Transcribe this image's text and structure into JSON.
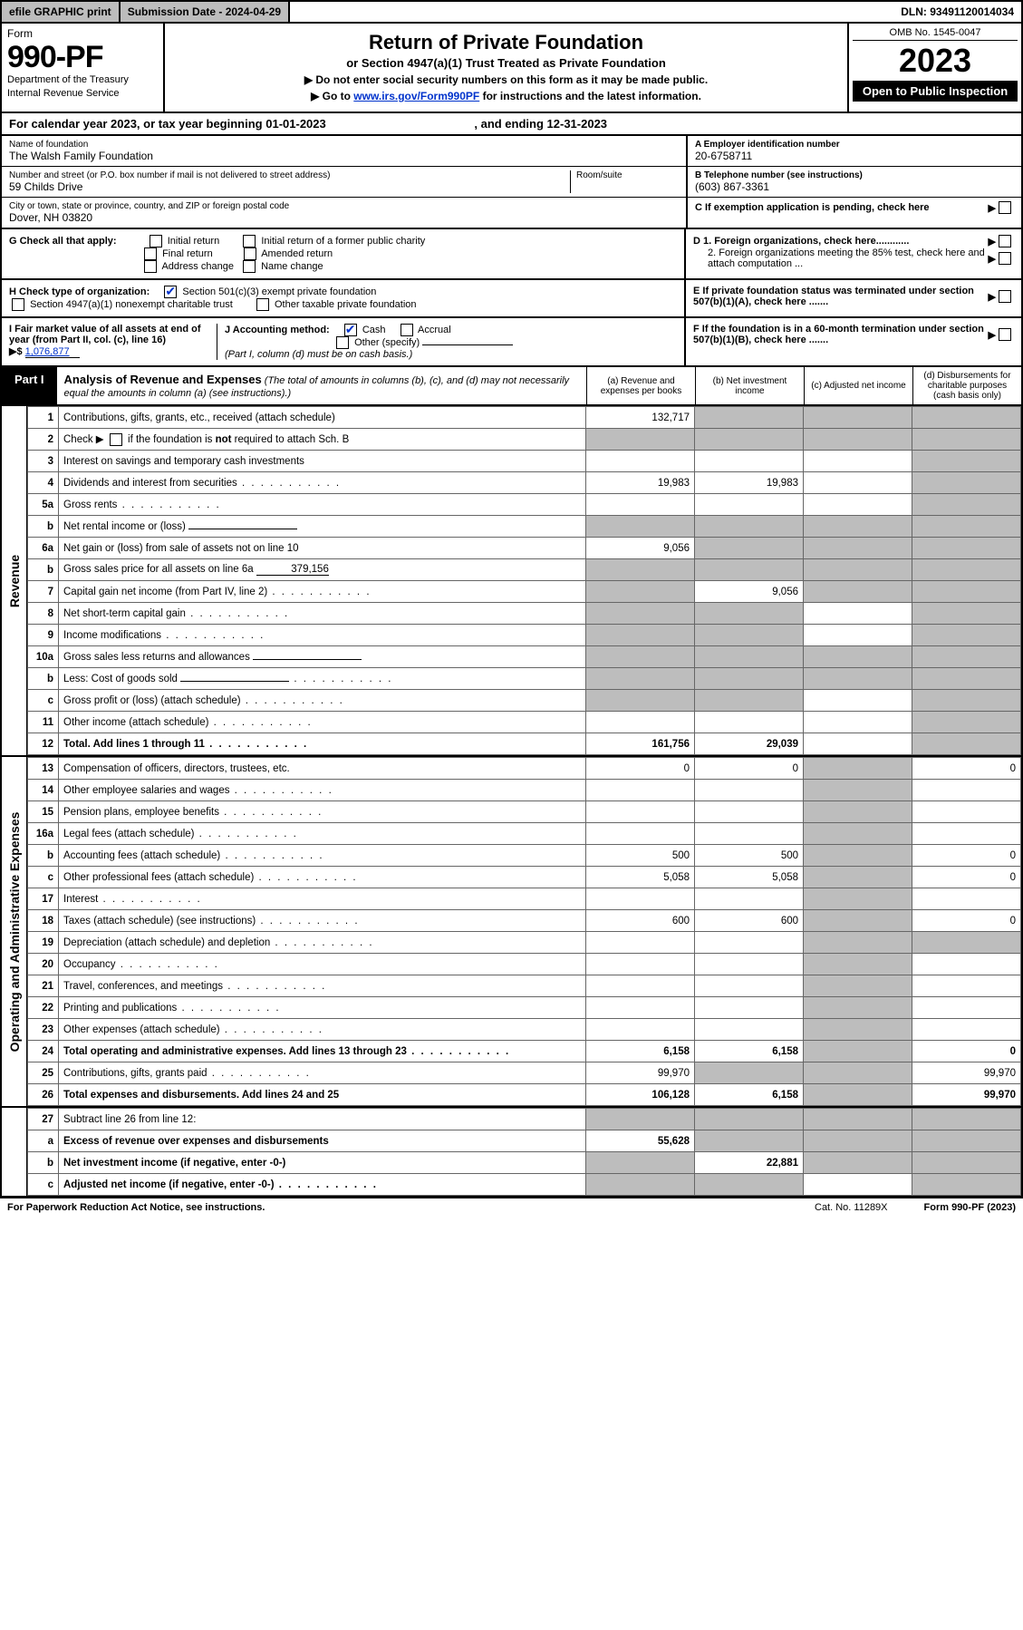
{
  "topbar": {
    "efile": "efile GRAPHIC print",
    "submission": "Submission Date - 2024-04-29",
    "dln": "DLN: 93491120014034"
  },
  "header": {
    "form_label": "Form",
    "form_number": "990-PF",
    "dept1": "Department of the Treasury",
    "dept2": "Internal Revenue Service",
    "title": "Return of Private Foundation",
    "subtitle": "or Section 4947(a)(1) Trust Treated as Private Foundation",
    "instr1": "▶ Do not enter social security numbers on this form as it may be made public.",
    "instr2_pre": "▶ Go to ",
    "instr2_link": "www.irs.gov/Form990PF",
    "instr2_post": " for instructions and the latest information.",
    "omb": "OMB No. 1545-0047",
    "year": "2023",
    "open": "Open to Public Inspection"
  },
  "yearline": {
    "text_pre": "For calendar year 2023, or tax year beginning ",
    "begin": "01-01-2023",
    "text_mid": " , and ending ",
    "end": "12-31-2023"
  },
  "info": {
    "name_lbl": "Name of foundation",
    "name_val": "The Walsh Family Foundation",
    "addr_lbl": "Number and street (or P.O. box number if mail is not delivered to street address)",
    "addr_val": "59 Childs Drive",
    "room_lbl": "Room/suite",
    "city_lbl": "City or town, state or province, country, and ZIP or foreign postal code",
    "city_val": "Dover, NH  03820",
    "A_lbl": "A Employer identification number",
    "A_val": "20-6758711",
    "B_lbl": "B Telephone number (see instructions)",
    "B_val": "(603) 867-3361",
    "C_lbl": "C If exemption application is pending, check here",
    "D1_lbl": "D 1. Foreign organizations, check here............",
    "D2_lbl": "2. Foreign organizations meeting the 85% test, check here and attach computation ...",
    "E_lbl": "E  If private foundation status was terminated under section 507(b)(1)(A), check here .......",
    "F_lbl": "F  If the foundation is in a 60-month termination under section 507(b)(1)(B), check here ......."
  },
  "G": {
    "label": "G Check all that apply:",
    "opts": [
      "Initial return",
      "Initial return of a former public charity",
      "Final return",
      "Amended return",
      "Address change",
      "Name change"
    ]
  },
  "H": {
    "label": "H Check type of organization:",
    "opt1": "Section 501(c)(3) exempt private foundation",
    "opt2": "Section 4947(a)(1) nonexempt charitable trust",
    "opt3": "Other taxable private foundation"
  },
  "I": {
    "label": "I Fair market value of all assets at end of year (from Part II, col. (c), line 16)",
    "arrow": "▶$",
    "val": "1,076,877"
  },
  "J": {
    "label": "J Accounting method:",
    "cash": "Cash",
    "accrual": "Accrual",
    "other": "Other (specify)",
    "note": "(Part I, column (d) must be on cash basis.)"
  },
  "part1": {
    "label": "Part I",
    "title": "Analysis of Revenue and Expenses",
    "note": " (The total of amounts in columns (b), (c), and (d) may not necessarily equal the amounts in column (a) (see instructions).)",
    "col_a": "(a)  Revenue and expenses per books",
    "col_b": "(b)  Net investment income",
    "col_c": "(c)  Adjusted net income",
    "col_d": "(d)  Disbursements for charitable purposes (cash basis only)"
  },
  "sections": {
    "revenue": "Revenue",
    "opex": "Operating and Administrative Expenses"
  },
  "rows": [
    {
      "n": "1",
      "d": "Contributions, gifts, grants, etc., received (attach schedule)",
      "a": "132,717",
      "b": "grey",
      "c": "grey",
      "e": "grey"
    },
    {
      "n": "2",
      "d": "Check ▶ ☐ if the foundation is not required to attach Sch. B",
      "a": "grey",
      "b": "grey",
      "c": "grey",
      "e": "grey",
      "desc_html": true
    },
    {
      "n": "3",
      "d": "Interest on savings and temporary cash investments",
      "a": "",
      "b": "",
      "c": "",
      "e": "grey"
    },
    {
      "n": "4",
      "d": "Dividends and interest from securities",
      "a": "19,983",
      "b": "19,983",
      "c": "",
      "e": "grey",
      "dots": true
    },
    {
      "n": "5a",
      "d": "Gross rents",
      "a": "",
      "b": "",
      "c": "",
      "e": "grey",
      "dots": true
    },
    {
      "n": "b",
      "d": "Net rental income or (loss)",
      "a": "grey",
      "b": "grey",
      "c": "grey",
      "e": "grey",
      "inline_blank": true
    },
    {
      "n": "6a",
      "d": "Net gain or (loss) from sale of assets not on line 10",
      "a": "9,056",
      "b": "grey",
      "c": "grey",
      "e": "grey"
    },
    {
      "n": "b",
      "d": "Gross sales price for all assets on line 6a",
      "a": "grey",
      "b": "grey",
      "c": "grey",
      "e": "grey",
      "inline_val": "379,156"
    },
    {
      "n": "7",
      "d": "Capital gain net income (from Part IV, line 2)",
      "a": "grey",
      "b": "9,056",
      "c": "grey",
      "e": "grey",
      "dots": true
    },
    {
      "n": "8",
      "d": "Net short-term capital gain",
      "a": "grey",
      "b": "grey",
      "c": "",
      "e": "grey",
      "dots": true
    },
    {
      "n": "9",
      "d": "Income modifications",
      "a": "grey",
      "b": "grey",
      "c": "",
      "e": "grey",
      "dots": true
    },
    {
      "n": "10a",
      "d": "Gross sales less returns and allowances",
      "a": "grey",
      "b": "grey",
      "c": "grey",
      "e": "grey",
      "inline_blank": true
    },
    {
      "n": "b",
      "d": "Less: Cost of goods sold",
      "a": "grey",
      "b": "grey",
      "c": "grey",
      "e": "grey",
      "inline_blank": true,
      "dots": true
    },
    {
      "n": "c",
      "d": "Gross profit or (loss) (attach schedule)",
      "a": "grey",
      "b": "grey",
      "c": "",
      "e": "grey",
      "dots": true
    },
    {
      "n": "11",
      "d": "Other income (attach schedule)",
      "a": "",
      "b": "",
      "c": "",
      "e": "grey",
      "dots": true
    },
    {
      "n": "12",
      "d": "Total. Add lines 1 through 11",
      "a": "161,756",
      "b": "29,039",
      "c": "",
      "e": "grey",
      "bold": true,
      "dots": true
    }
  ],
  "rows_opex": [
    {
      "n": "13",
      "d": "Compensation of officers, directors, trustees, etc.",
      "a": "0",
      "b": "0",
      "c": "grey",
      "e": "0"
    },
    {
      "n": "14",
      "d": "Other employee salaries and wages",
      "a": "",
      "b": "",
      "c": "grey",
      "e": "",
      "dots": true
    },
    {
      "n": "15",
      "d": "Pension plans, employee benefits",
      "a": "",
      "b": "",
      "c": "grey",
      "e": "",
      "dots": true
    },
    {
      "n": "16a",
      "d": "Legal fees (attach schedule)",
      "a": "",
      "b": "",
      "c": "grey",
      "e": "",
      "dots": true
    },
    {
      "n": "b",
      "d": "Accounting fees (attach schedule)",
      "a": "500",
      "b": "500",
      "c": "grey",
      "e": "0",
      "dots": true
    },
    {
      "n": "c",
      "d": "Other professional fees (attach schedule)",
      "a": "5,058",
      "b": "5,058",
      "c": "grey",
      "e": "0",
      "dots": true
    },
    {
      "n": "17",
      "d": "Interest",
      "a": "",
      "b": "",
      "c": "grey",
      "e": "",
      "dots": true
    },
    {
      "n": "18",
      "d": "Taxes (attach schedule) (see instructions)",
      "a": "600",
      "b": "600",
      "c": "grey",
      "e": "0",
      "dots": true
    },
    {
      "n": "19",
      "d": "Depreciation (attach schedule) and depletion",
      "a": "",
      "b": "",
      "c": "grey",
      "e": "grey",
      "dots": true
    },
    {
      "n": "20",
      "d": "Occupancy",
      "a": "",
      "b": "",
      "c": "grey",
      "e": "",
      "dots": true
    },
    {
      "n": "21",
      "d": "Travel, conferences, and meetings",
      "a": "",
      "b": "",
      "c": "grey",
      "e": "",
      "dots": true
    },
    {
      "n": "22",
      "d": "Printing and publications",
      "a": "",
      "b": "",
      "c": "grey",
      "e": "",
      "dots": true
    },
    {
      "n": "23",
      "d": "Other expenses (attach schedule)",
      "a": "",
      "b": "",
      "c": "grey",
      "e": "",
      "dots": true
    },
    {
      "n": "24",
      "d": "Total operating and administrative expenses. Add lines 13 through 23",
      "a": "6,158",
      "b": "6,158",
      "c": "grey",
      "e": "0",
      "bold": true,
      "dots": true
    },
    {
      "n": "25",
      "d": "Contributions, gifts, grants paid",
      "a": "99,970",
      "b": "grey",
      "c": "grey",
      "e": "99,970",
      "dots": true
    },
    {
      "n": "26",
      "d": "Total expenses and disbursements. Add lines 24 and 25",
      "a": "106,128",
      "b": "6,158",
      "c": "grey",
      "e": "99,970",
      "bold": true
    }
  ],
  "rows_bottom": [
    {
      "n": "27",
      "d": "Subtract line 26 from line 12:",
      "a": "grey",
      "b": "grey",
      "c": "grey",
      "e": "grey"
    },
    {
      "n": "a",
      "d": "Excess of revenue over expenses and disbursements",
      "a": "55,628",
      "b": "grey",
      "c": "grey",
      "e": "grey",
      "bold": true
    },
    {
      "n": "b",
      "d": "Net investment income (if negative, enter -0-)",
      "a": "grey",
      "b": "22,881",
      "c": "grey",
      "e": "grey",
      "bold": true
    },
    {
      "n": "c",
      "d": "Adjusted net income (if negative, enter -0-)",
      "a": "grey",
      "b": "grey",
      "c": "",
      "e": "grey",
      "bold": true,
      "dots": true
    }
  ],
  "footer": {
    "left": "For Paperwork Reduction Act Notice, see instructions.",
    "mid": "Cat. No. 11289X",
    "right": "Form 990-PF (2023)"
  },
  "colors": {
    "grey": "#bdbdbd",
    "link": "#0033cc",
    "black": "#000000"
  }
}
